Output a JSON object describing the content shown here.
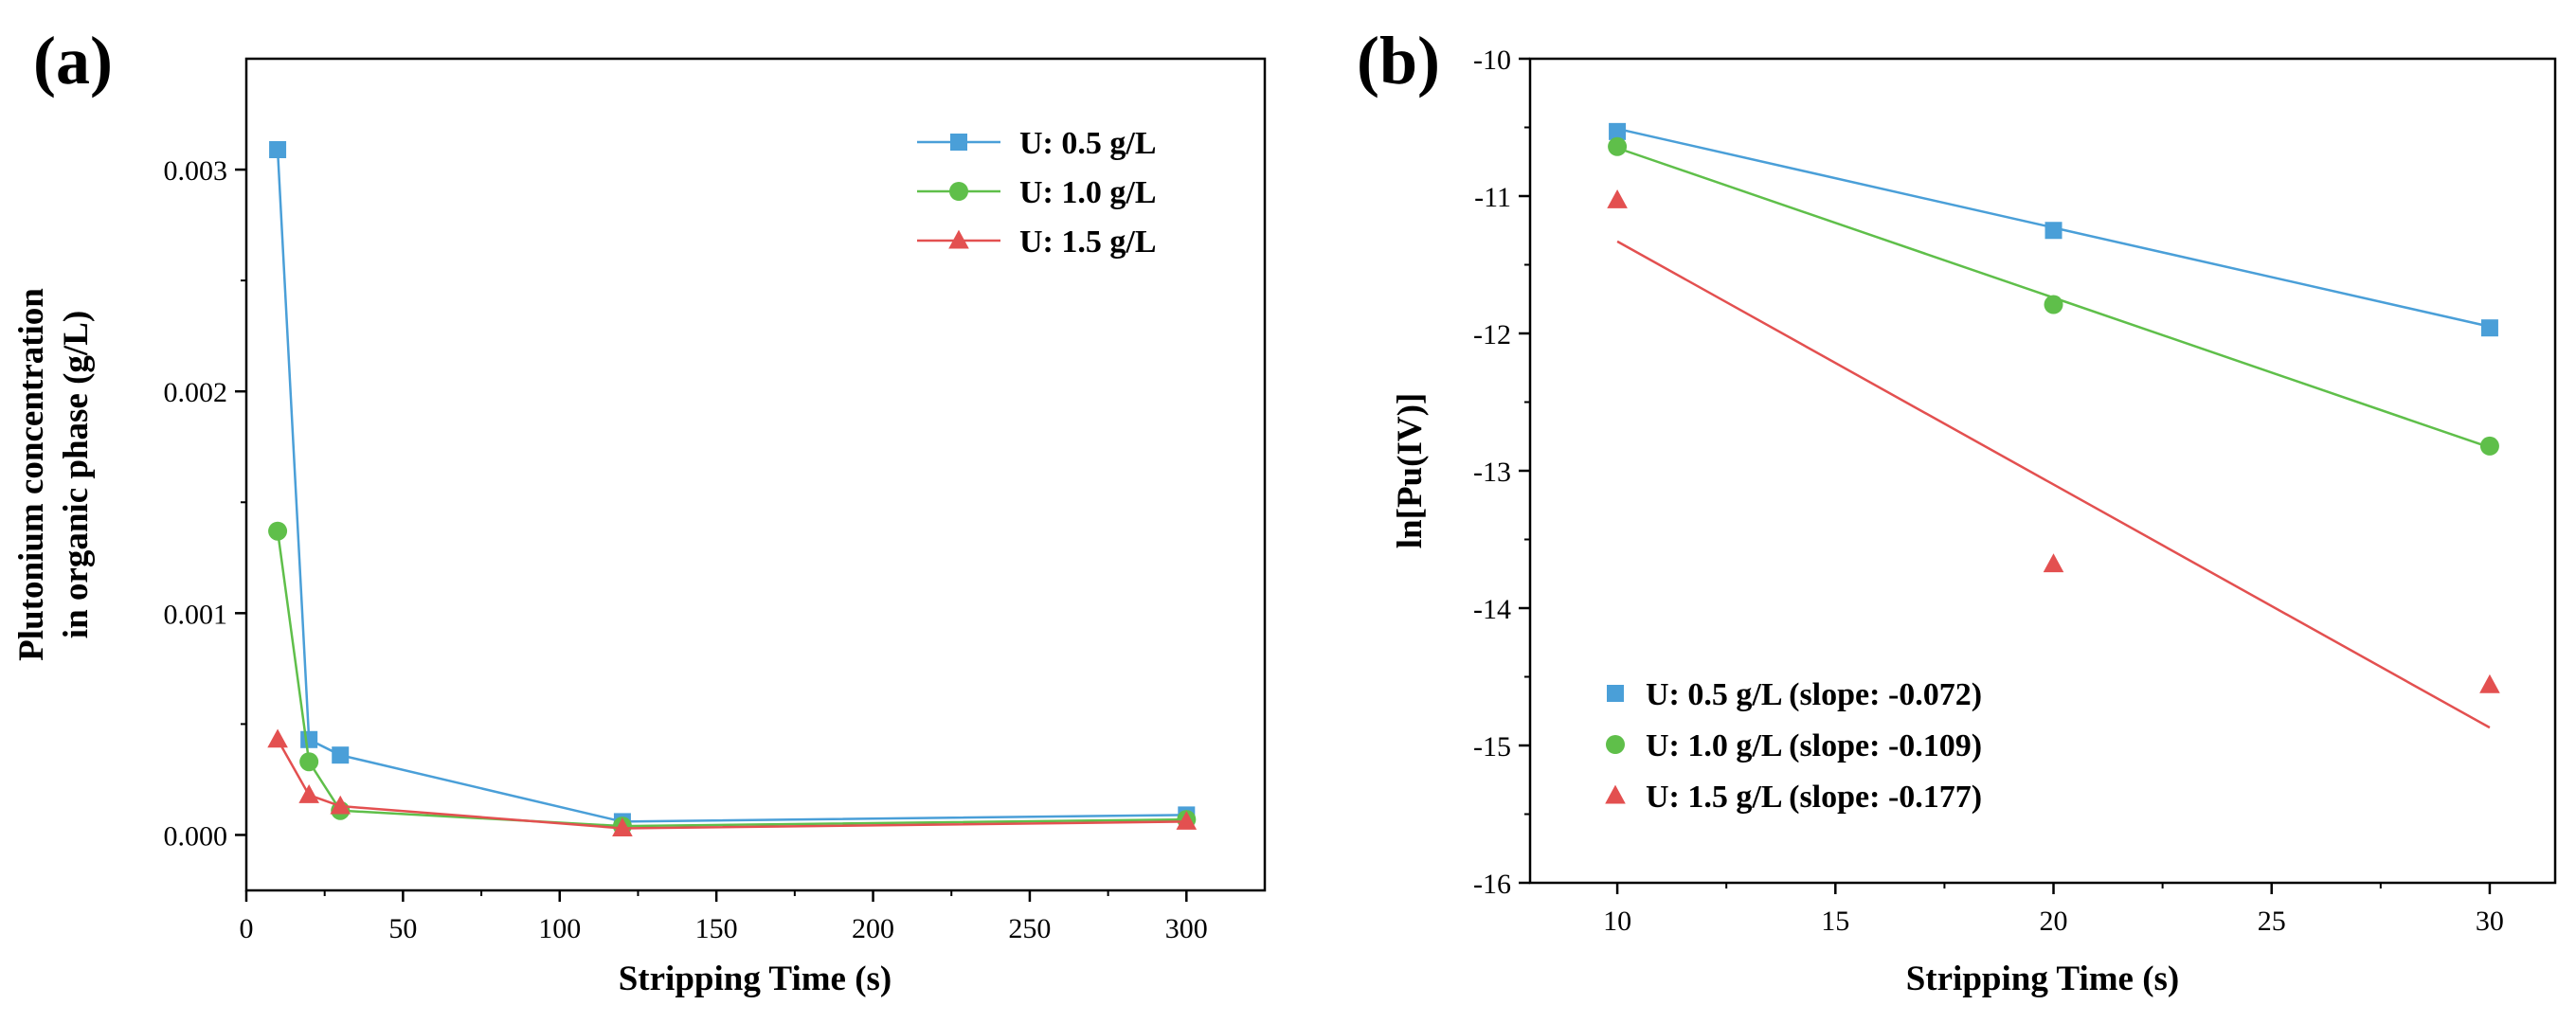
{
  "figure": {
    "background": "#ffffff"
  },
  "chart_data": [
    {
      "panel_label": "(a)",
      "type": "line",
      "title": "",
      "xlabel": "Stripping Time (s)",
      "ylabel_line1": "Plutonium concentration",
      "ylabel_line2": "in organic phase (g/L)",
      "xlim": [
        0,
        325
      ],
      "ylim": [
        -0.00025,
        0.0035
      ],
      "xticks": [
        0,
        50,
        100,
        150,
        200,
        250,
        300
      ],
      "xtick_labels": [
        "0",
        "50",
        "100",
        "150",
        "200",
        "250",
        "300"
      ],
      "yticks": [
        0.0,
        0.001,
        0.002,
        0.003
      ],
      "ytick_labels": [
        "0.000",
        "0.001",
        "0.002",
        "0.003"
      ],
      "grid": false,
      "legend_position": "top-right",
      "series": [
        {
          "name": "U: 0.5 g/L",
          "marker": "square",
          "color": "#4a9fd8",
          "x": [
            10,
            20,
            30,
            120,
            300
          ],
          "y": [
            0.00309,
            0.00043,
            0.00036,
            6e-05,
            9e-05
          ]
        },
        {
          "name": "U: 1.0 g/L",
          "marker": "circle",
          "color": "#5fbf4a",
          "x": [
            10,
            20,
            30,
            120,
            300
          ],
          "y": [
            0.00137,
            0.00033,
            0.00011,
            4e-05,
            7e-05
          ]
        },
        {
          "name": "U: 1.5 g/L",
          "marker": "triangle",
          "color": "#e35050",
          "x": [
            10,
            20,
            30,
            120,
            300
          ],
          "y": [
            0.00043,
            0.00018,
            0.00013,
            3e-05,
            6e-05
          ]
        }
      ]
    },
    {
      "panel_label": "(b)",
      "type": "scatter",
      "title": "",
      "xlabel": "Stripping Time (s)",
      "ylabel": "ln[Pu(IV)]",
      "xlim": [
        8,
        31.5
      ],
      "ylim": [
        -16,
        -10
      ],
      "xticks": [
        10,
        15,
        20,
        25,
        30
      ],
      "xtick_labels": [
        "10",
        "15",
        "20",
        "25",
        "30"
      ],
      "yticks": [
        -16,
        -15,
        -14,
        -13,
        -12,
        -11,
        -10
      ],
      "ytick_labels": [
        "-16",
        "-15",
        "-14",
        "-13",
        "-12",
        "-11",
        "-10"
      ],
      "grid": false,
      "legend_position": "bottom-left",
      "series": [
        {
          "name": "U: 0.5 g/L (slope:  -0.072)",
          "marker": "square",
          "color": "#4a9fd8",
          "x": [
            10,
            20,
            30
          ],
          "y": [
            -10.53,
            -11.25,
            -11.96
          ],
          "fit": {
            "x": [
              10,
              30
            ],
            "y": [
              -10.51,
              -11.95
            ]
          }
        },
        {
          "name": "U: 1.0 g/L (slope:  -0.109)",
          "marker": "circle",
          "color": "#5fbf4a",
          "x": [
            10,
            20,
            30
          ],
          "y": [
            -10.64,
            -11.79,
            -12.82
          ],
          "fit": {
            "x": [
              10,
              30
            ],
            "y": [
              -10.65,
              -12.83
            ]
          }
        },
        {
          "name": "U: 1.5 g/L (slope:  -0.177)",
          "marker": "triangle",
          "color": "#e35050",
          "x": [
            10,
            20,
            30
          ],
          "y": [
            -11.03,
            -13.68,
            -14.56
          ],
          "fit": {
            "x": [
              10,
              30
            ],
            "y": [
              -11.33,
              -14.87
            ]
          }
        }
      ]
    }
  ]
}
